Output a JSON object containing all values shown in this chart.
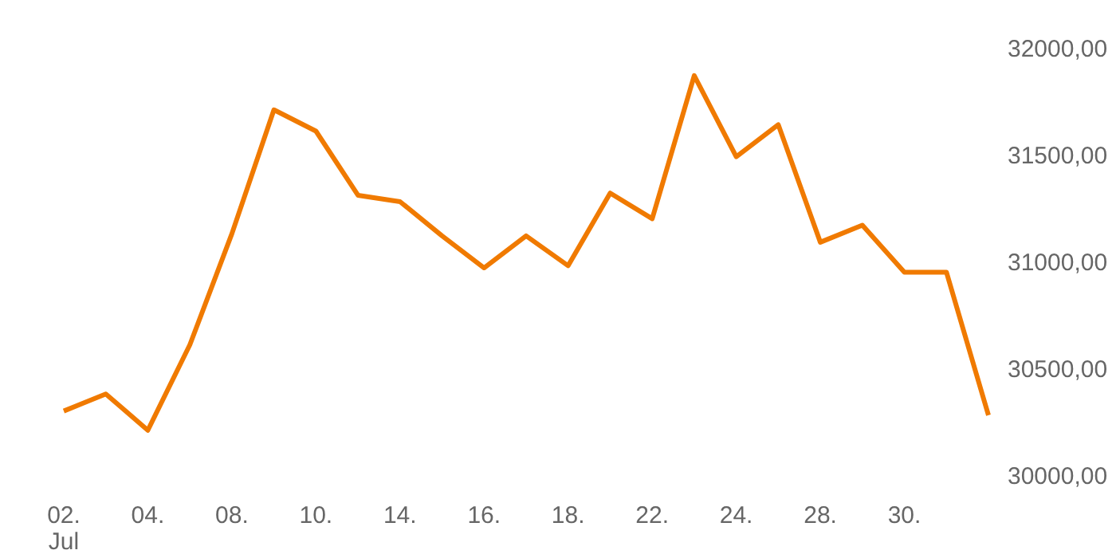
{
  "chart_data": {
    "type": "line",
    "categories": [
      "02.\nJul",
      null,
      "04.",
      null,
      "08.",
      null,
      "10.",
      null,
      "14.",
      null,
      "16.",
      null,
      "18.",
      null,
      "22.",
      null,
      "24.",
      null,
      "28.",
      null,
      "30.",
      null,
      null
    ],
    "series": [
      {
        "color": "#f07a00",
        "values": [
          30300,
          30380,
          30210,
          30610,
          31130,
          31710,
          31610,
          31310,
          31280,
          31120,
          30970,
          31120,
          30980,
          31320,
          31200,
          31870,
          31490,
          31640,
          31090,
          31170,
          30950,
          30950,
          30280
        ]
      }
    ],
    "ylim": [
      30000,
      32000
    ],
    "yticks": [
      {
        "value": 30000,
        "label": "30000,00"
      },
      {
        "value": 30500,
        "label": "30500,00"
      },
      {
        "value": 31000,
        "label": "31000,00"
      },
      {
        "value": 31500,
        "label": "31500,00"
      },
      {
        "value": 32000,
        "label": "32000,00"
      }
    ],
    "grid": false,
    "marker": "none",
    "line_style": "solid"
  }
}
